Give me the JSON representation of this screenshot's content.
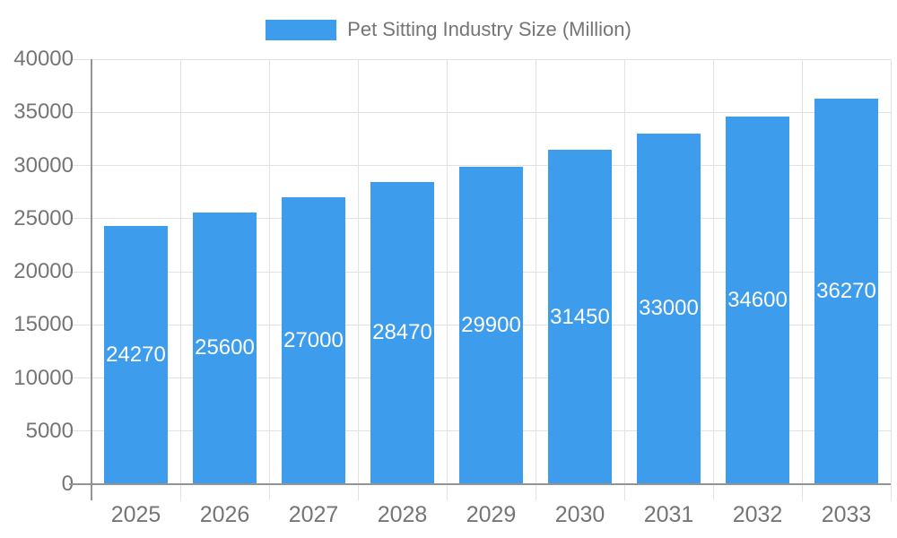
{
  "chart_data": {
    "type": "bar",
    "title": "Pet Sitting Industry Size (Million)",
    "series_name": "Pet Sitting Industry Size (Million)",
    "categories": [
      "2025",
      "2026",
      "2027",
      "2028",
      "2029",
      "2030",
      "2031",
      "2032",
      "2033"
    ],
    "values": [
      24270,
      25600,
      27000,
      28470,
      29900,
      31450,
      33000,
      34600,
      36270
    ],
    "xlabel": "",
    "ylabel": "",
    "ylim": [
      0,
      40000
    ],
    "yticks": [
      0,
      5000,
      10000,
      15000,
      20000,
      25000,
      30000,
      35000,
      40000
    ],
    "grid": true,
    "legend_position": "top",
    "value_label_position": "inside-center",
    "colors": {
      "bar": "#3d9cec",
      "grid": "#e2e2e2",
      "axis": "#949494",
      "tick_text": "#757575",
      "value_label": "#ffffff",
      "background": "#ffffff"
    }
  }
}
